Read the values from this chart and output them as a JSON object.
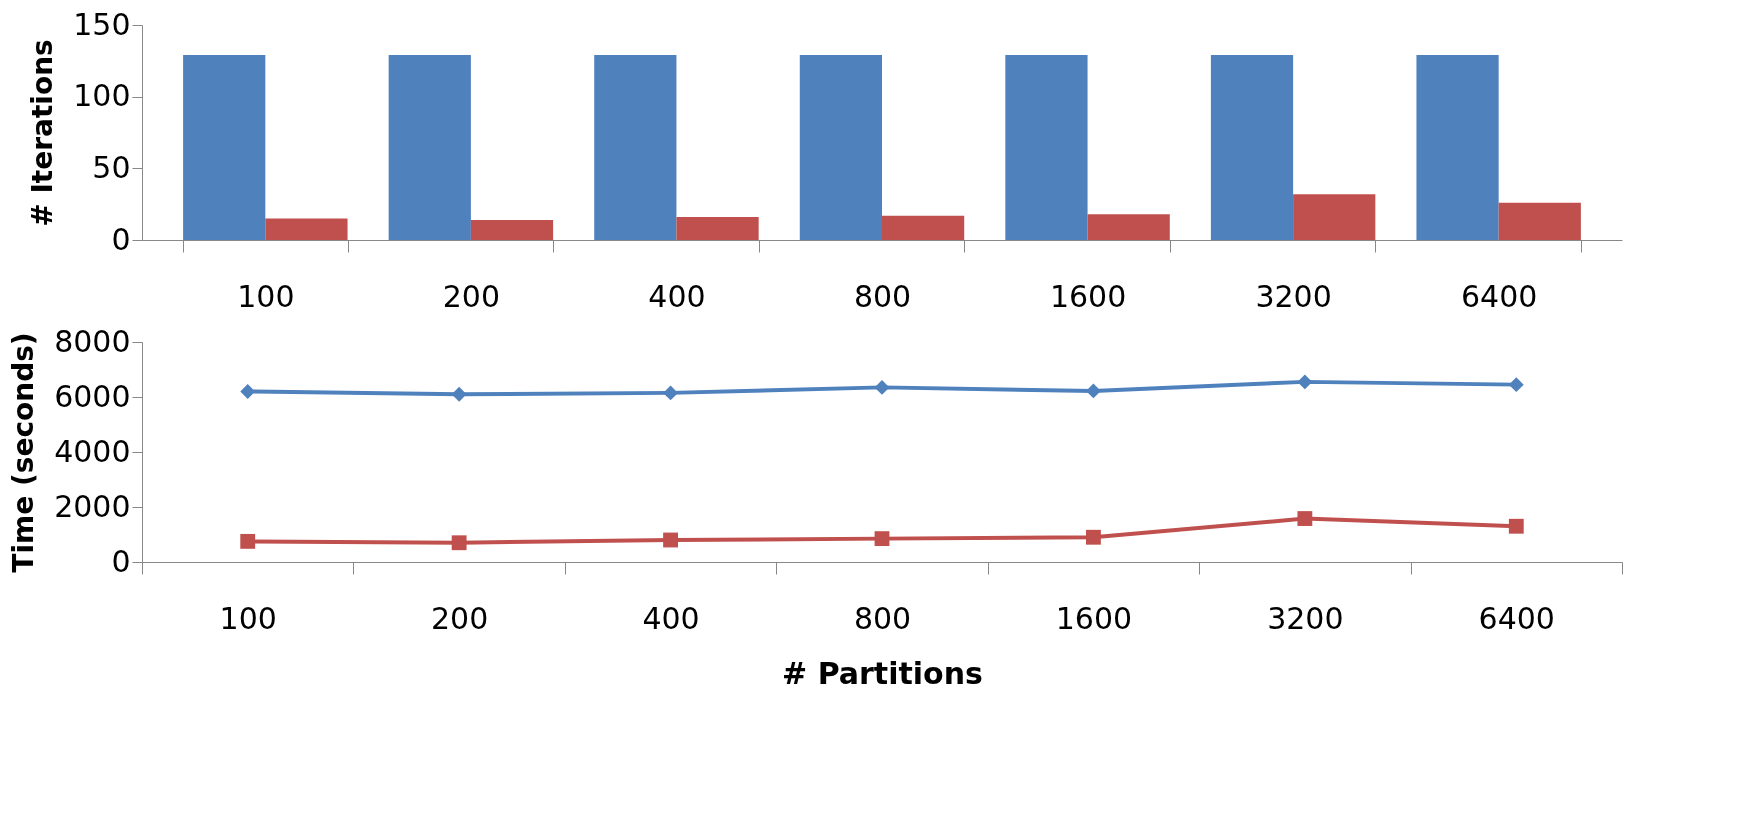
{
  "chart_data": [
    {
      "type": "bar",
      "ylabel": "# Iterations",
      "categories": [
        "100",
        "200",
        "400",
        "800",
        "1600",
        "3200",
        "6400"
      ],
      "ylim": [
        0,
        150
      ],
      "yticks": [
        0,
        50,
        100,
        150
      ],
      "grid": false,
      "legend": false,
      "series": [
        {
          "color": "#4f81bd",
          "values": [
            129,
            129,
            129,
            129,
            129,
            129,
            129
          ]
        },
        {
          "color": "#c0504d",
          "values": [
            15,
            14,
            16,
            17,
            18,
            32,
            26
          ]
        }
      ]
    },
    {
      "type": "line",
      "ylabel": "Time (seconds)",
      "xlabel": "# Partitions",
      "categories": [
        "100",
        "200",
        "400",
        "800",
        "1600",
        "3200",
        "6400"
      ],
      "ylim": [
        0,
        8000
      ],
      "yticks": [
        0,
        2000,
        4000,
        6000,
        8000
      ],
      "grid": false,
      "line_style": "solid",
      "series": [
        {
          "color": "#4f81bd",
          "marker": "diamond",
          "values": [
            6200,
            6100,
            6150,
            6350,
            6220,
            6550,
            6450
          ]
        },
        {
          "color": "#c0504d",
          "marker": "square",
          "values": [
            750,
            700,
            800,
            850,
            900,
            1580,
            1300
          ]
        }
      ]
    }
  ]
}
